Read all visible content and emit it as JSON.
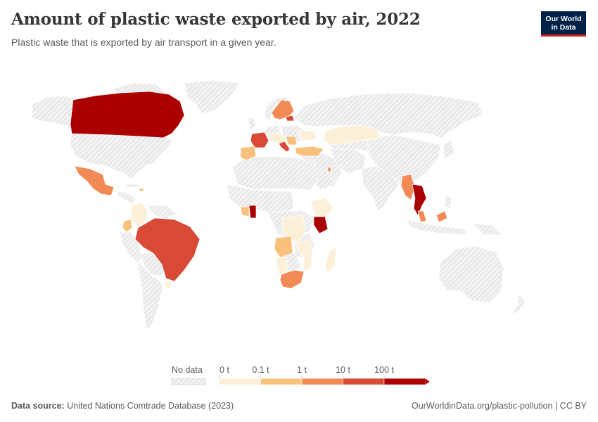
{
  "header": {
    "title": "Amount of plastic waste exported by air, 2022",
    "subtitle": "Plastic waste that is exported by air transport in a given year."
  },
  "logo": {
    "line1": "Our World",
    "line2": "in Data"
  },
  "legend": {
    "no_data_label": "No data",
    "bins": [
      {
        "label": "0 t",
        "color": "#fdf0d9"
      },
      {
        "label": "0.1 t",
        "color": "#f8c27e"
      },
      {
        "label": "1 t",
        "color": "#f28a55"
      },
      {
        "label": "10 t",
        "color": "#d84a35"
      },
      {
        "label": "100 t",
        "color": "#ab0000"
      }
    ]
  },
  "footer": {
    "source_label": "Data source:",
    "source_text": "United Nations Comtrade Database (2023)",
    "link": "OurWorldinData.org/plastic-pollution",
    "license": "CC BY"
  },
  "colors": {
    "no_data_bg": "#f2f2f2",
    "hatch": "#d4d4d4",
    "border": "#ffffff",
    "logo_bg": "#002147",
    "logo_accent": "#ce261e"
  }
}
